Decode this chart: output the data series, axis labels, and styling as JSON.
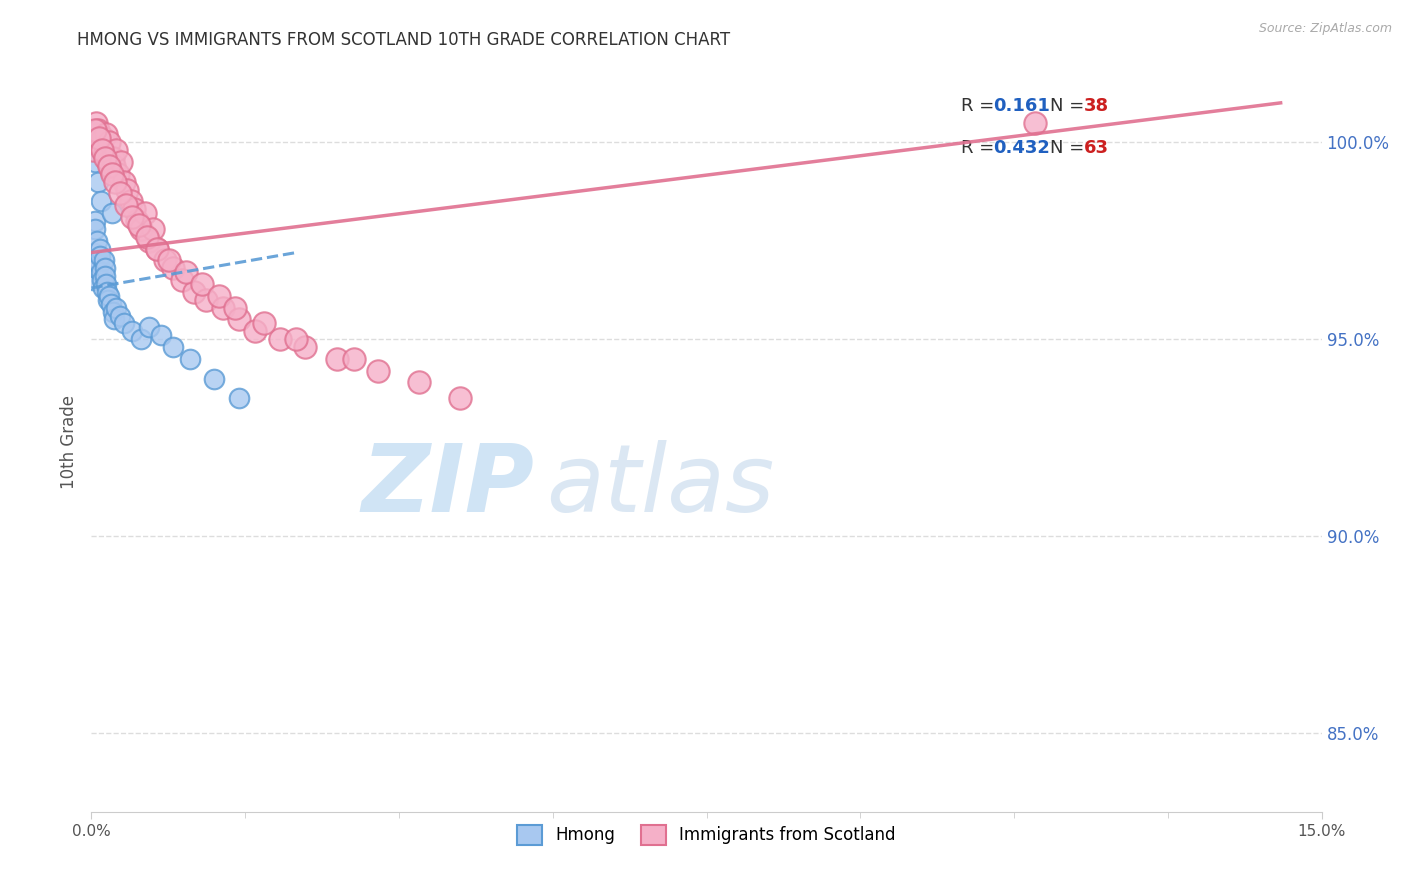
{
  "title": "HMONG VS IMMIGRANTS FROM SCOTLAND 10TH GRADE CORRELATION CHART",
  "source": "Source: ZipAtlas.com",
  "ylabel": "10th Grade",
  "yticks": [
    85.0,
    90.0,
    95.0,
    100.0
  ],
  "ytick_labels": [
    "85.0%",
    "90.0%",
    "95.0%",
    "100.0%"
  ],
  "xmin": 0.0,
  "xmax": 15.0,
  "ymin": 83.0,
  "ymax": 101.8,
  "hmong_fc": "#a8c8f0",
  "hmong_ec": "#5b9bd5",
  "scotland_fc": "#f5b0c8",
  "scotland_ec": "#e07090",
  "hmong_line_color": "#5b9bd5",
  "scotland_line_color": "#e07090",
  "legend_r_color": "#2060c0",
  "legend_n_color": "#cc2020",
  "hmong_R": "0.161",
  "hmong_N": "38",
  "scotland_R": "0.432",
  "scotland_N": "63",
  "hmong_x": [
    0.02,
    0.03,
    0.04,
    0.05,
    0.06,
    0.07,
    0.08,
    0.09,
    0.1,
    0.11,
    0.12,
    0.13,
    0.14,
    0.15,
    0.16,
    0.17,
    0.18,
    0.19,
    0.2,
    0.22,
    0.24,
    0.26,
    0.28,
    0.3,
    0.35,
    0.4,
    0.5,
    0.6,
    0.7,
    0.85,
    1.0,
    1.2,
    1.5,
    1.8,
    0.05,
    0.08,
    0.12,
    0.25
  ],
  "hmong_y": [
    96.5,
    97.2,
    98.0,
    97.8,
    96.8,
    97.5,
    97.0,
    96.9,
    97.3,
    97.1,
    96.7,
    96.5,
    96.3,
    97.0,
    96.8,
    96.6,
    96.4,
    96.2,
    96.0,
    96.1,
    95.9,
    95.7,
    95.5,
    95.8,
    95.6,
    95.4,
    95.2,
    95.0,
    95.3,
    95.1,
    94.8,
    94.5,
    94.0,
    93.5,
    99.5,
    99.0,
    98.5,
    98.2
  ],
  "scotland_x": [
    0.02,
    0.04,
    0.06,
    0.08,
    0.1,
    0.12,
    0.14,
    0.16,
    0.18,
    0.2,
    0.22,
    0.24,
    0.26,
    0.28,
    0.3,
    0.33,
    0.36,
    0.4,
    0.44,
    0.48,
    0.52,
    0.56,
    0.6,
    0.65,
    0.7,
    0.75,
    0.8,
    0.9,
    1.0,
    1.1,
    1.25,
    1.4,
    1.6,
    1.8,
    2.0,
    2.3,
    2.6,
    3.0,
    3.5,
    4.0,
    0.05,
    0.09,
    0.13,
    0.17,
    0.21,
    0.25,
    0.29,
    0.35,
    0.42,
    0.5,
    0.58,
    0.68,
    0.8,
    0.95,
    1.15,
    1.35,
    1.55,
    1.75,
    2.1,
    2.5,
    3.2,
    4.5,
    11.5
  ],
  "scotland_y": [
    99.8,
    100.2,
    100.5,
    100.3,
    100.0,
    99.9,
    100.1,
    99.7,
    100.2,
    99.5,
    100.0,
    99.3,
    99.6,
    99.4,
    99.8,
    99.2,
    99.5,
    99.0,
    98.8,
    98.5,
    98.3,
    98.0,
    97.8,
    98.2,
    97.5,
    97.8,
    97.3,
    97.0,
    96.8,
    96.5,
    96.2,
    96.0,
    95.8,
    95.5,
    95.2,
    95.0,
    94.8,
    94.5,
    94.2,
    93.9,
    100.3,
    100.1,
    99.8,
    99.6,
    99.4,
    99.2,
    99.0,
    98.7,
    98.4,
    98.1,
    97.9,
    97.6,
    97.3,
    97.0,
    96.7,
    96.4,
    96.1,
    95.8,
    95.4,
    95.0,
    94.5,
    93.5,
    100.5
  ]
}
